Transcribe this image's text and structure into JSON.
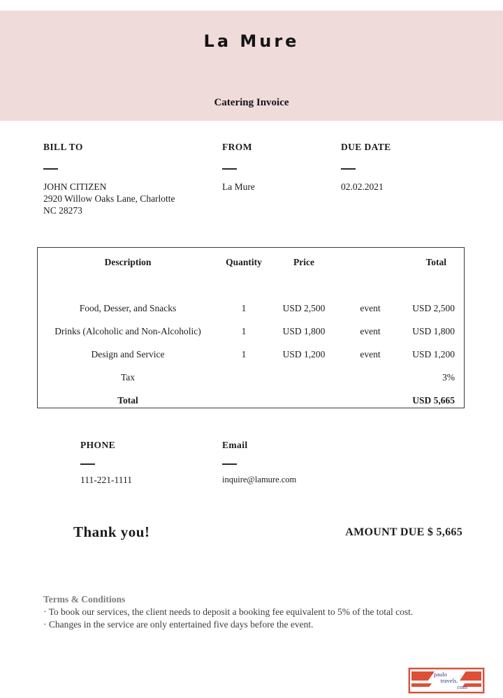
{
  "header": {
    "title": "La Mure",
    "subtitle": "Catering Invoice"
  },
  "billing": {
    "bill_to_label": "BILL TO",
    "bill_to_name": "JOHN CITIZEN",
    "bill_to_address_line1": "2920 Willow Oaks Lane, Charlotte",
    "bill_to_address_line2": "NC 28273",
    "from_label": "FROM",
    "from_value": "La Mure",
    "due_date_label": "DUE DATE",
    "due_date_value": "02.02.2021"
  },
  "table": {
    "headers": {
      "description": "Description",
      "quantity": "Quantity",
      "price": "Price",
      "unit": "",
      "total": "Total"
    },
    "rows": [
      {
        "description": "Food, Desser, and Snacks",
        "quantity": "1",
        "price": "USD 2,500",
        "unit": "event",
        "total": "USD 2,500"
      },
      {
        "description": "Drinks (Alcoholic and Non-Alcoholic)",
        "quantity": "1",
        "price": "USD 1,800",
        "unit": "event",
        "total": "USD 1,800"
      },
      {
        "description": "Design and Service",
        "quantity": "1",
        "price": "USD 1,200",
        "unit": "event",
        "total": "USD 1,200"
      },
      {
        "description": "Tax",
        "quantity": "",
        "price": "",
        "unit": "",
        "total": "3%"
      },
      {
        "description": "Total",
        "quantity": "",
        "price": "",
        "unit": "",
        "total": "USD 5,665"
      }
    ]
  },
  "contact": {
    "phone_label": "PHONE",
    "phone_value": "111-221-1111",
    "email_label": "Email",
    "email_value": "inquire@lamure.com"
  },
  "footer": {
    "thanks": "Thank you!",
    "amount_due": "AMOUNT DUE $ 5,665"
  },
  "terms": {
    "heading": "Terms & Conditions",
    "items": [
      "· To book our services, the client needs to deposit a booking fee equivalent to 5% of the total cost.",
      "· Changes in the service are only entertained five days before the event."
    ]
  },
  "logo": {
    "line1": "paulo",
    "line2": "travels.",
    "line3": "com"
  },
  "colors": {
    "header_bg": "#f0dbdb",
    "logo_red": "#dd4f38",
    "logo_text_blue": "#2b3a85",
    "terms_gray": "#7d7d7d"
  }
}
